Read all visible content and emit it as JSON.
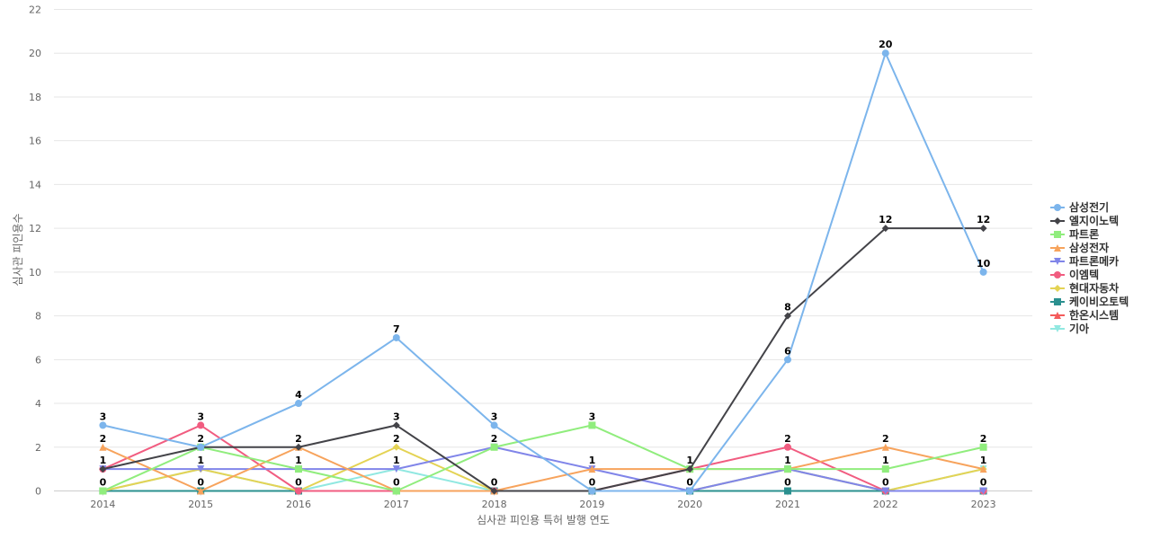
{
  "chart_data": {
    "type": "line",
    "title": "",
    "xlabel": "심사관 피인용 특허 발행 연도",
    "ylabel": "심사관 피인용수",
    "categories": [
      "2014",
      "2015",
      "2016",
      "2017",
      "2018",
      "2019",
      "2020",
      "2021",
      "2022",
      "2023"
    ],
    "ylim": [
      0,
      22
    ],
    "yticks": [
      0,
      2,
      4,
      6,
      8,
      10,
      12,
      14,
      16,
      18,
      20,
      22
    ],
    "grid": true,
    "legend_position": "right",
    "series": [
      {
        "name": "삼성전기",
        "color": "#7cb5ec",
        "marker": "circle",
        "values": [
          3,
          2,
          4,
          7,
          3,
          0,
          0,
          6,
          20,
          10
        ]
      },
      {
        "name": "엘지이노텍",
        "color": "#434348",
        "marker": "diamond",
        "values": [
          1,
          2,
          2,
          3,
          0,
          0,
          1,
          8,
          12,
          12
        ]
      },
      {
        "name": "파트론",
        "color": "#90ed7d",
        "marker": "square",
        "values": [
          0,
          2,
          1,
          0,
          2,
          3,
          1,
          1,
          1,
          2
        ]
      },
      {
        "name": "삼성전자",
        "color": "#f7a35c",
        "marker": "triangle",
        "values": [
          2,
          0,
          2,
          0,
          0,
          1,
          1,
          1,
          2,
          1
        ]
      },
      {
        "name": "파트론메카",
        "color": "#8085e9",
        "marker": "triangle-down",
        "values": [
          1,
          1,
          1,
          1,
          2,
          1,
          0,
          1,
          0,
          0
        ]
      },
      {
        "name": "이엠텍",
        "color": "#f15c80",
        "marker": "circle",
        "values": [
          1,
          3,
          0,
          0,
          0,
          0,
          1,
          2,
          0,
          0
        ]
      },
      {
        "name": "현대자동차",
        "color": "#e4d354",
        "marker": "diamond",
        "values": [
          0,
          1,
          0,
          2,
          0,
          0,
          0,
          1,
          0,
          1
        ]
      },
      {
        "name": "케이비오토텍",
        "color": "#2b908f",
        "marker": "square",
        "values": [
          0,
          0,
          0,
          0,
          0,
          0,
          0,
          0,
          0,
          0
        ]
      },
      {
        "name": "한온시스템",
        "color": "#f45b5b",
        "marker": "triangle",
        "values": [
          0,
          0,
          0,
          0,
          0,
          0,
          0,
          0,
          0,
          0
        ]
      },
      {
        "name": "기아",
        "color": "#91e8e1",
        "marker": "triangle-down",
        "values": [
          0,
          1,
          0,
          1,
          0,
          0,
          0,
          1,
          0,
          1
        ]
      }
    ],
    "data_labels": [
      {
        "category": "2014",
        "texts": [
          "3",
          "2",
          "1",
          "0"
        ]
      },
      {
        "category": "2015",
        "texts": [
          "3",
          "2",
          "1",
          "0"
        ]
      },
      {
        "category": "2016",
        "texts": [
          "4",
          "2",
          "1",
          "0"
        ]
      },
      {
        "category": "2017",
        "texts": [
          "7",
          "3",
          "2",
          "1",
          "0"
        ]
      },
      {
        "category": "2018",
        "texts": [
          "3",
          "2",
          "0"
        ]
      },
      {
        "category": "2019",
        "texts": [
          "3",
          "1",
          "0"
        ]
      },
      {
        "category": "2020",
        "texts": [
          "1",
          "0"
        ]
      },
      {
        "category": "2021",
        "texts": [
          "8",
          "6",
          "2",
          "1",
          "0"
        ]
      },
      {
        "category": "2022",
        "texts": [
          "20",
          "12",
          "2",
          "1",
          "0"
        ]
      },
      {
        "category": "2023",
        "texts": [
          "12",
          "10",
          "2",
          "1",
          "0"
        ]
      }
    ]
  }
}
